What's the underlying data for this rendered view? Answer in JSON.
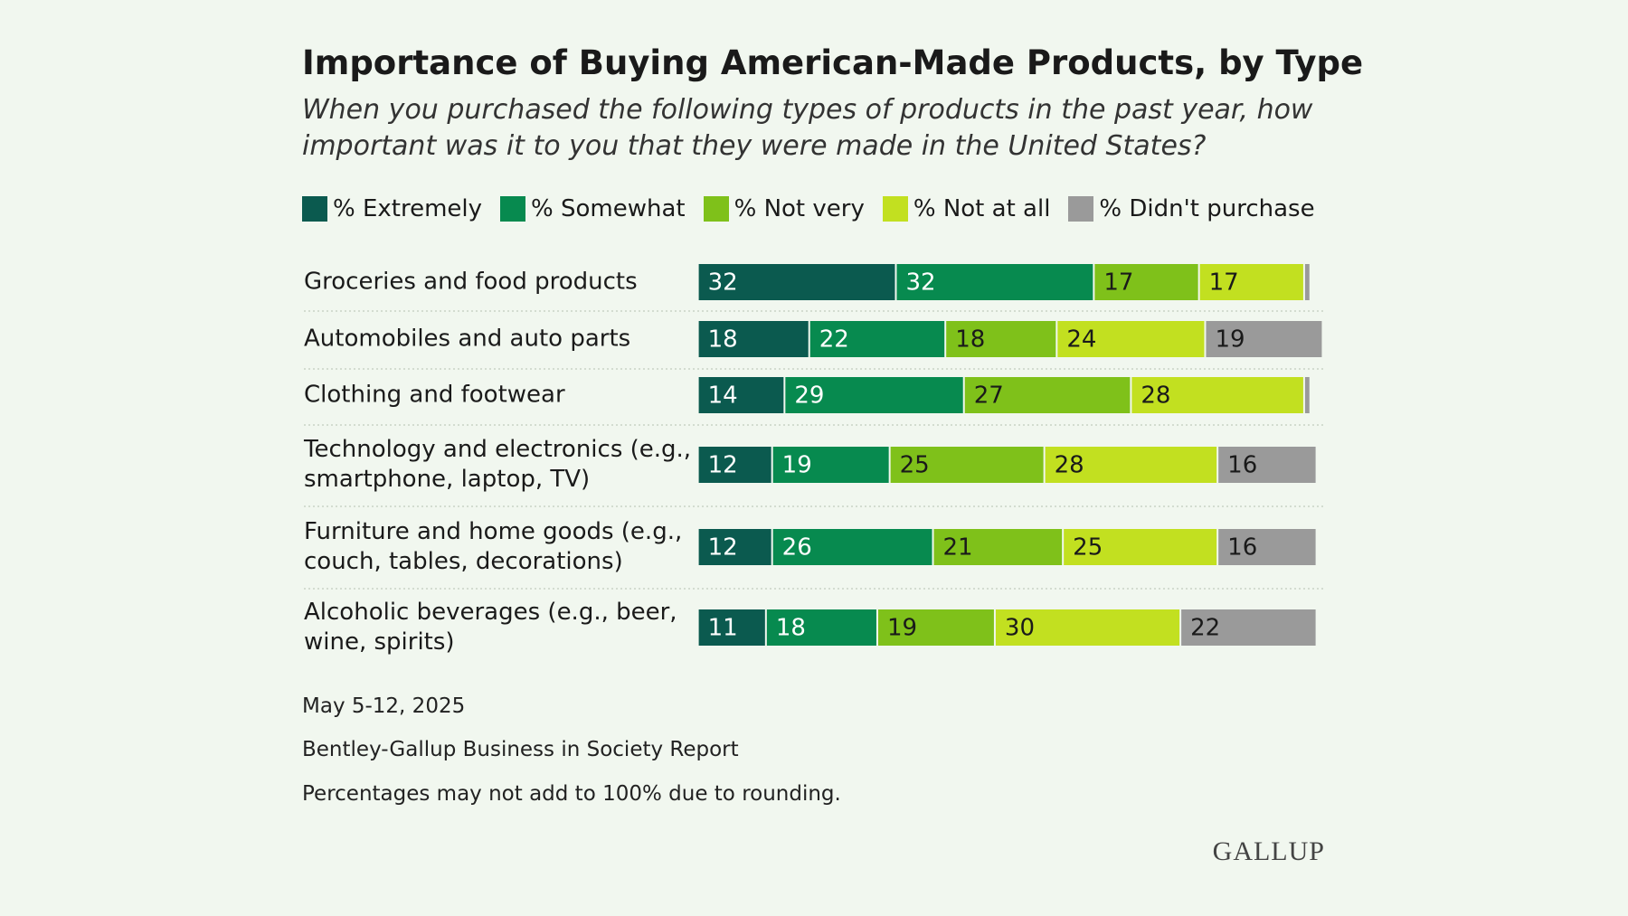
{
  "chart_data": {
    "type": "stacked-bar-horizontal",
    "title": "Importance of Buying American-Made Products, by Type",
    "subtitle": "When you purchased the following types of products in the past year, how important was it to you that they were made in the United States?",
    "categories": [
      "Groceries and food products",
      "Automobiles and auto parts",
      "Clothing and footwear",
      "Technology and electronics (e.g., smartphone, laptop, TV)",
      "Furniture and home goods (e.g., couch, tables, decorations)",
      "Alcoholic beverages (e.g., beer, wine, spirits)"
    ],
    "series": [
      {
        "name": "% Extremely",
        "color": "#0b5a4f",
        "values": [
          32,
          18,
          14,
          12,
          12,
          11
        ]
      },
      {
        "name": "% Somewhat",
        "color": "#078a4f",
        "values": [
          32,
          22,
          29,
          19,
          26,
          18
        ]
      },
      {
        "name": "% Not very",
        "color": "#7fc11a",
        "values": [
          17,
          18,
          27,
          25,
          21,
          19
        ]
      },
      {
        "name": "% Not at all",
        "color": "#c2e020",
        "values": [
          17,
          24,
          28,
          28,
          25,
          30
        ]
      },
      {
        "name": "% Didn't purchase",
        "color": "#9a9a9a",
        "values": [
          1,
          19,
          1,
          16,
          16,
          22
        ]
      }
    ],
    "notes": [
      "May 5-12, 2025",
      "Bentley-Gallup Business in Society Report",
      "Percentages may not add to 100% due to rounding."
    ],
    "logo": "GALLUP"
  }
}
